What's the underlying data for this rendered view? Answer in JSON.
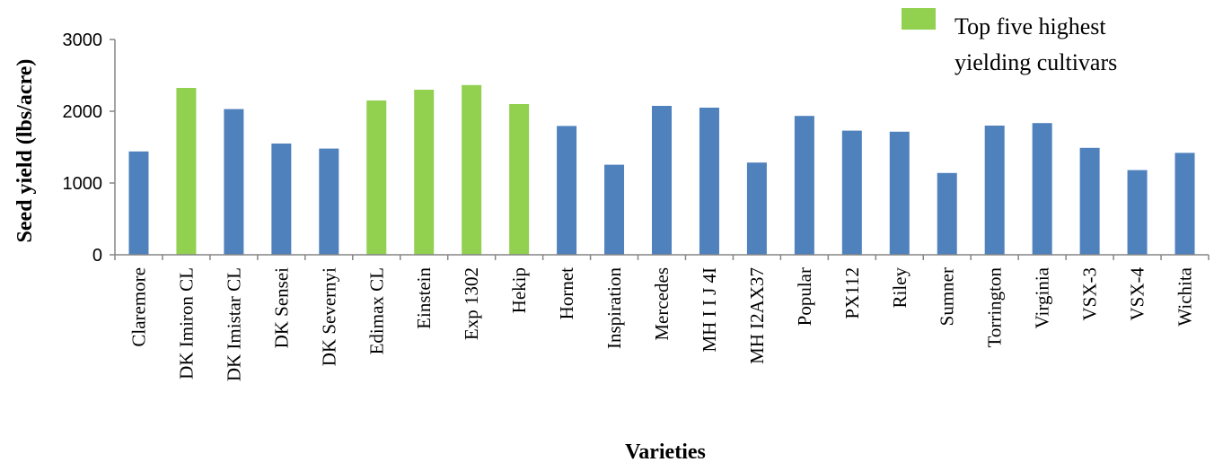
{
  "chart_data": {
    "type": "bar",
    "title": "",
    "xlabel": "Varieties",
    "ylabel": "Seed yield (lbs/acre)",
    "ylim": [
      0,
      3000
    ],
    "yticks": [
      0,
      1000,
      2000,
      3000
    ],
    "grid": false,
    "legend": {
      "position": "top-right",
      "label_line1": "Top five highest",
      "label_line2": "yielding cultivars",
      "color": "#92d050"
    },
    "colors": {
      "default": "#4f81bd",
      "highlight": "#92d050"
    },
    "categories": [
      "Claremore",
      "DK Imiron CL",
      "DK Imistar CL",
      "DK Sensei",
      "DK Severnyi",
      "Edimax CL",
      "Einstein",
      "Exp 1302",
      "Hekip",
      "Hornet",
      "Inspiration",
      "Mercedes",
      "MH I I J 4I",
      "MH I2AX37",
      "Popular",
      "PX112",
      "Riley",
      "Sumner",
      "Torrington",
      "Virginia",
      "VSX-3",
      "VSX-4",
      "Wichita"
    ],
    "values": [
      1440,
      2325,
      2030,
      1550,
      1480,
      2150,
      2300,
      2365,
      2100,
      1795,
      1255,
      2075,
      2050,
      1285,
      1935,
      1730,
      1715,
      1140,
      1800,
      1835,
      1490,
      1180,
      1420
    ],
    "highlighted": [
      false,
      true,
      false,
      false,
      false,
      true,
      true,
      true,
      true,
      false,
      false,
      false,
      false,
      false,
      false,
      false,
      false,
      false,
      false,
      false,
      false,
      false,
      false
    ]
  }
}
